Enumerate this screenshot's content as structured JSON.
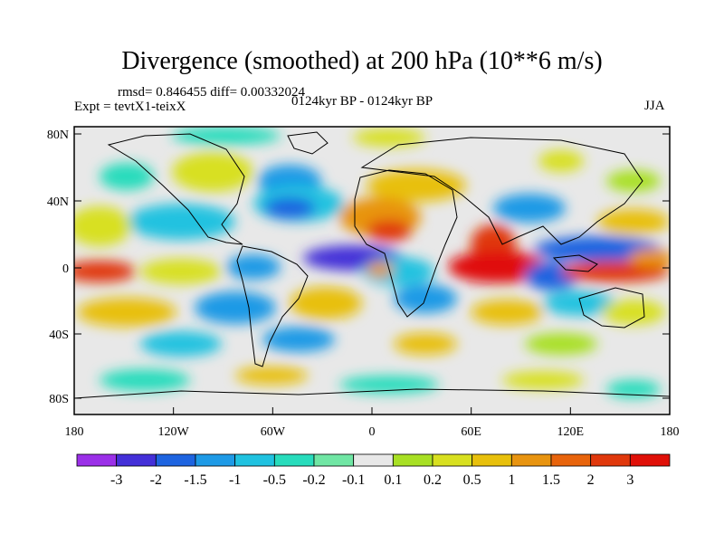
{
  "title": "Divergence (smoothed) at 200 hPa (10**6 m/s)",
  "stats": "rmsd= 0.846455 diff= 0.00332024",
  "experiment": "Expt = tevtX1-teixX",
  "period": "0124kyr BP - 0124kyr BP",
  "season": "JJA",
  "lat_ticks": [
    "80N",
    "40N",
    "0",
    "40S",
    "80S"
  ],
  "lon_ticks": [
    "180",
    "120W",
    "60W",
    "0",
    "60E",
    "120E",
    "180"
  ],
  "colorbar": {
    "colors": [
      "#9b30e8",
      "#4430d8",
      "#1e64e0",
      "#1e9ae6",
      "#20c2e0",
      "#28dcbc",
      "#70e6a4",
      "#e8e8e8",
      "#a8e024",
      "#d8e020",
      "#e8c00c",
      "#e89410",
      "#e8640c",
      "#e0380c",
      "#e01008"
    ],
    "labels": [
      "-3",
      "-2",
      "-1.5",
      "-1",
      "-0.5",
      "-0.2",
      "-0.1",
      "0.1",
      "0.2",
      "0.5",
      "1",
      "1.5",
      "2",
      "3"
    ]
  }
}
